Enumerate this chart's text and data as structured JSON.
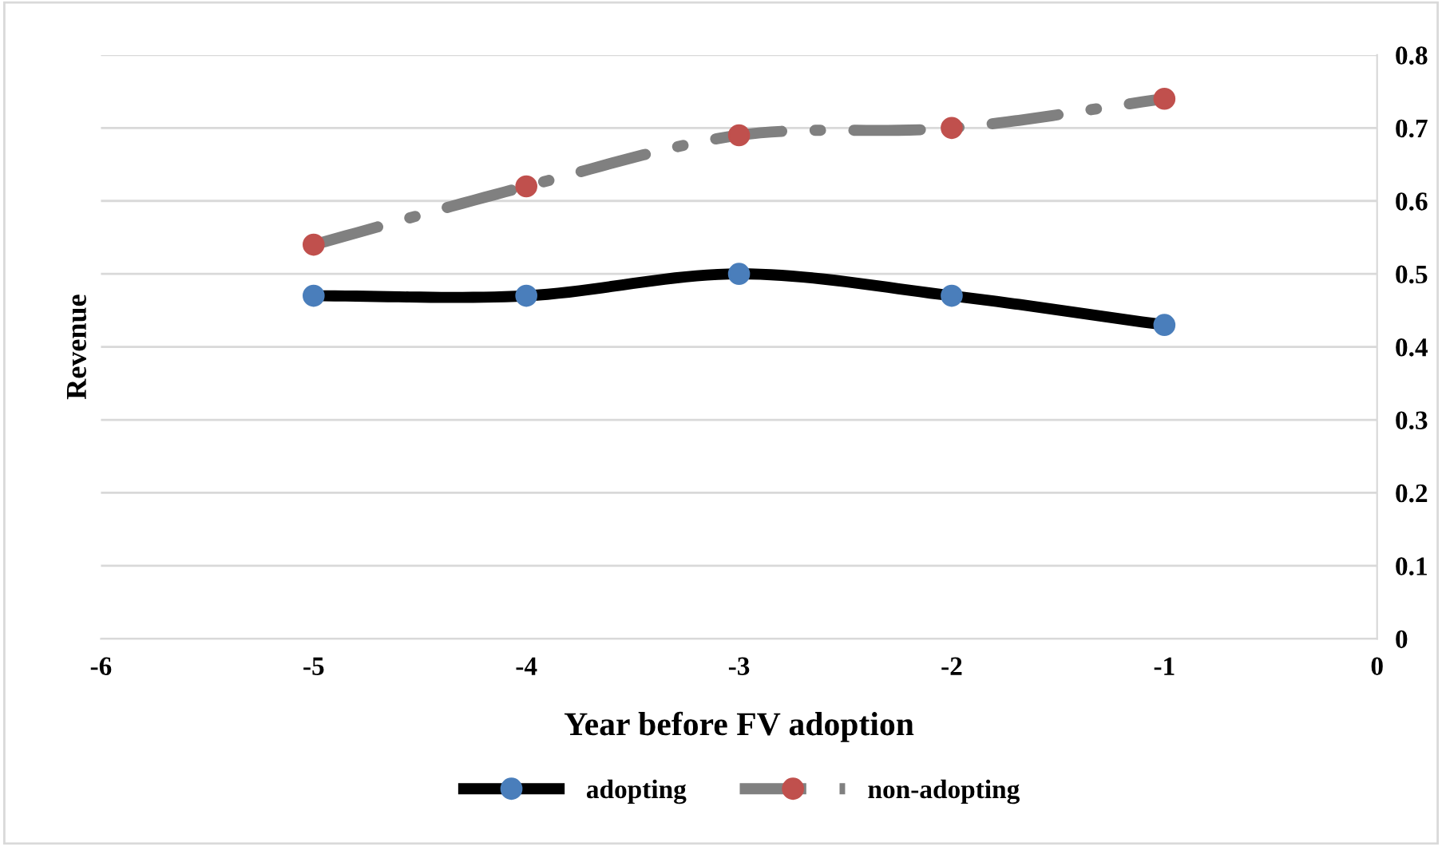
{
  "chart_data": {
    "type": "line",
    "xlabel": "Year before FV adoption",
    "ylabel": "Revenue",
    "x": [
      -5,
      -4,
      -3,
      -2,
      -1
    ],
    "series": [
      {
        "name": "adopting",
        "color": "#000000",
        "colors": [
          "#4a7ebb",
          "#4a7ebb",
          "#4a7ebb",
          "#4a7ebb",
          "#4a7ebb"
        ],
        "values": [
          0.47,
          0.47,
          0.5,
          0.47,
          0.43
        ],
        "line_style": "solid"
      },
      {
        "name": "non-adopting",
        "color": "#808080",
        "colors": [
          "#c0504d",
          "#c0504d",
          "#c0504d",
          "#c0504d",
          "#c0504d"
        ],
        "values": [
          0.54,
          0.62,
          0.69,
          0.7,
          0.74
        ],
        "line_style": "dashdot"
      }
    ],
    "xlim": [
      -6,
      0
    ],
    "xticks": [
      -6,
      -5,
      -4,
      -3,
      -2,
      -1,
      0
    ],
    "ylim": [
      0,
      0.8
    ],
    "yticks": [
      0,
      0.1,
      0.2,
      0.3,
      0.4,
      0.5,
      0.6,
      0.7,
      0.8
    ],
    "grid": "y",
    "legend": "bottom",
    "marker": "circle"
  }
}
